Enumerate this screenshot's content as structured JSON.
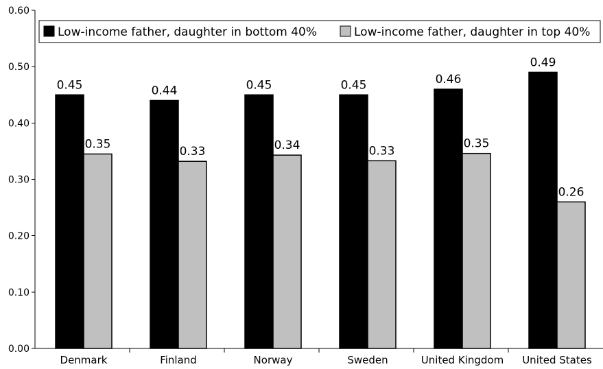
{
  "chart_data": {
    "type": "bar",
    "categories": [
      "Denmark",
      "Finland",
      "Norway",
      "Sweden",
      "United Kingdom",
      "United States"
    ],
    "series": [
      {
        "name": "Low-income father, daughter in bottom 40%",
        "values": [
          0.45,
          0.44,
          0.45,
          0.45,
          0.46,
          0.49
        ],
        "labels": [
          "0.45",
          "0.44",
          "0.45",
          "0.45",
          "0.46",
          "0.49"
        ],
        "color": "#000000"
      },
      {
        "name": "Low-income father, daughter in top 40%",
        "values": [
          0.345,
          0.332,
          0.343,
          0.333,
          0.346,
          0.26
        ],
        "labels": [
          "0.35",
          "0.33",
          "0.34",
          "0.33",
          "0.35",
          "0.26"
        ],
        "color": "#c0c0c0"
      }
    ],
    "yticks": [
      "0.00",
      "0.10",
      "0.20",
      "0.30",
      "0.40",
      "0.50",
      "0.60"
    ],
    "ylim": [
      0,
      0.6
    ],
    "title": "",
    "xlabel": "",
    "ylabel": "",
    "legend_position": "top",
    "grid": false
  }
}
